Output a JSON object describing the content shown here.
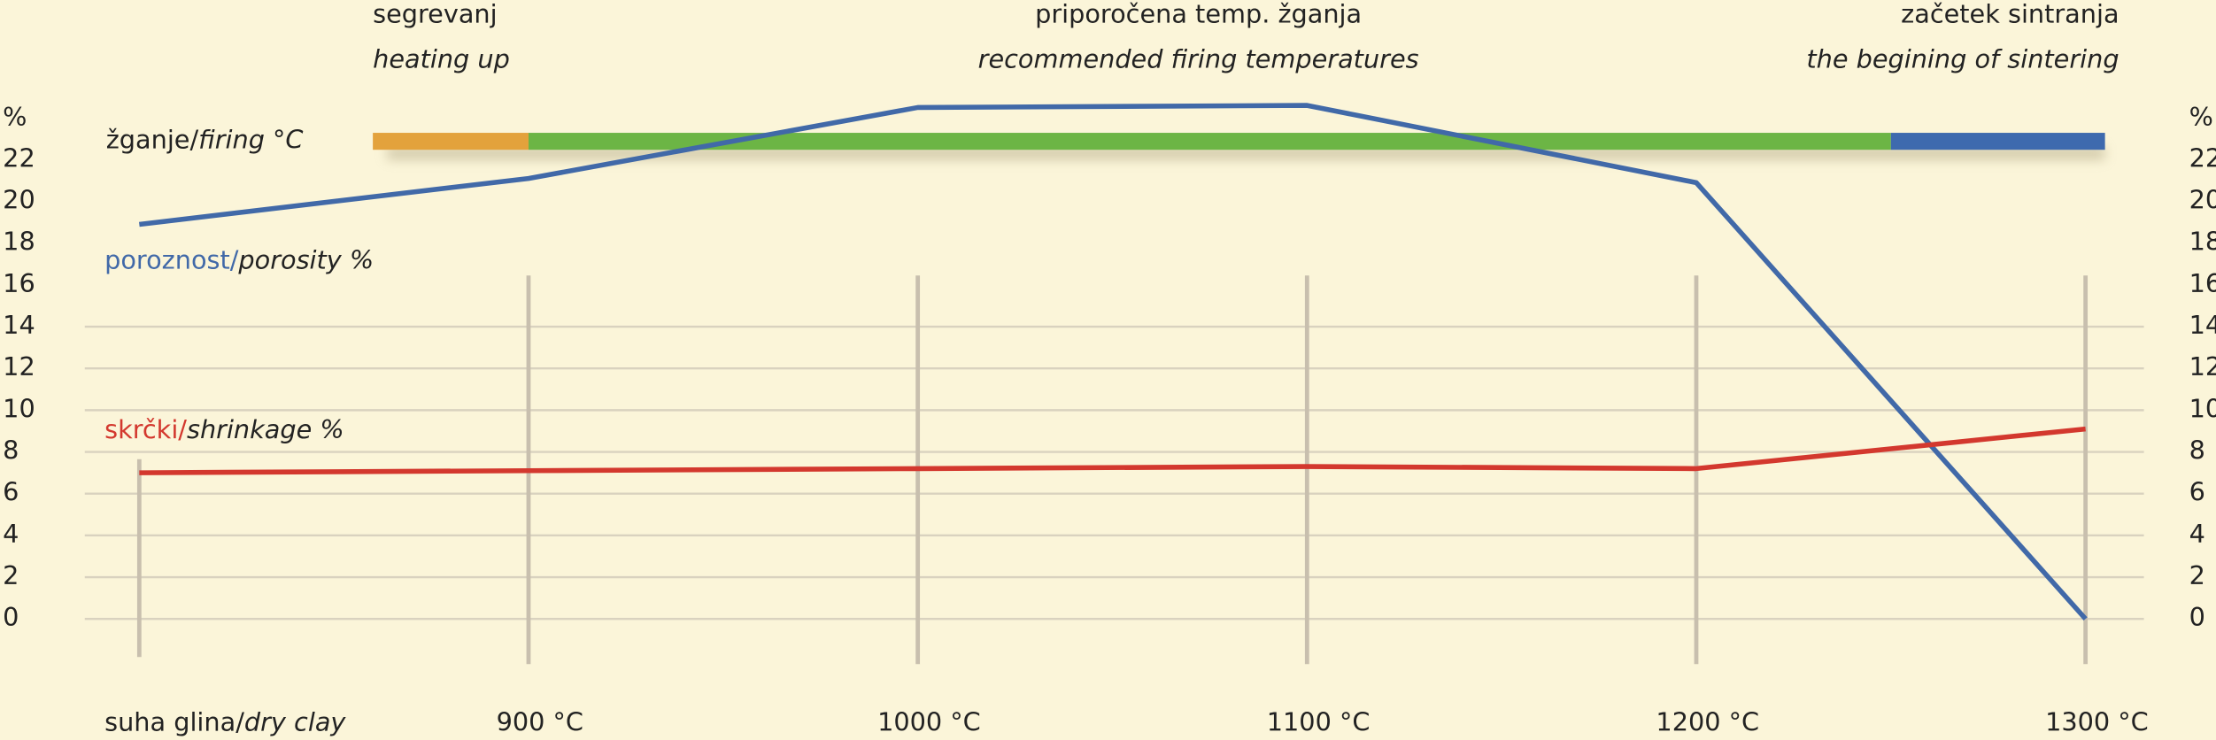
{
  "chart_data": {
    "type": "line",
    "xlim": [
      786,
      1315
    ],
    "xticks": [
      {
        "value": 900,
        "label": "900 °C"
      },
      {
        "value": 1000,
        "label": "1000 °C"
      },
      {
        "value": 1100,
        "label": "1100 °C"
      },
      {
        "value": 1200,
        "label": "1200 °C"
      },
      {
        "value": 1300,
        "label": "1300 °C"
      }
    ],
    "first_category": {
      "label": "suha glina/",
      "label_en": "dry clay"
    },
    "ylim": [
      0,
      22
    ],
    "yticks": [
      0,
      2,
      4,
      6,
      8,
      10,
      12,
      14,
      16,
      18,
      20,
      22
    ],
    "y_unit": "%",
    "grid": true,
    "firing": {
      "label": "žganje/",
      "label_en": "firing °C",
      "segments": [
        {
          "label": "segrevanj",
          "label_en": "heating up",
          "start": 860,
          "end": 900,
          "color": "#e3a23c"
        },
        {
          "label": "priporočena temp. žganja",
          "label_en": "recommended firing temperatures",
          "start": 900,
          "end": 1250,
          "color": "#6cb545"
        },
        {
          "label": "začetek sintranja",
          "label_en": "the begining of sintering",
          "start": 1250,
          "end": 1305,
          "color": "#3e6aae"
        }
      ]
    },
    "series": [
      {
        "name": "poroznost/",
        "name_en": "porosity %",
        "color": "#4169a8",
        "values": [
          18.9,
          21.1,
          24.5,
          24.6,
          20.9,
          0
        ]
      },
      {
        "name": "skrčki/",
        "name_en": "shrinkage %",
        "color": "#d3382e",
        "values": [
          7.0,
          7.1,
          7.2,
          7.3,
          7.2,
          9.1
        ]
      }
    ]
  }
}
